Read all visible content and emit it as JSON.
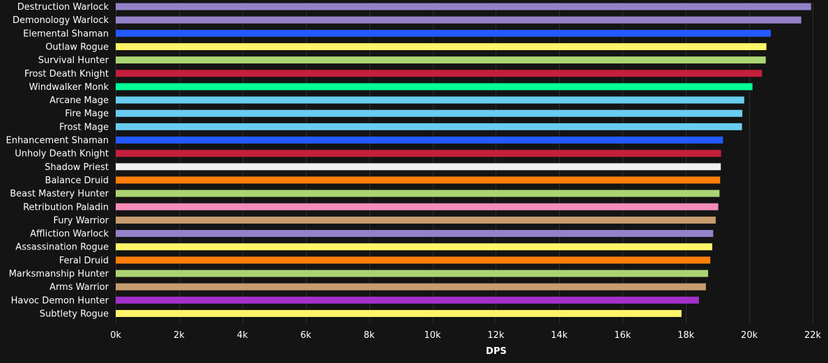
{
  "chart_data": {
    "type": "bar",
    "orientation": "horizontal",
    "xlabel": "DPS",
    "ylabel": "",
    "xlim": [
      0,
      22000
    ],
    "ticks": [
      {
        "value": 0,
        "label": "0k"
      },
      {
        "value": 2000,
        "label": "2k"
      },
      {
        "value": 4000,
        "label": "4k"
      },
      {
        "value": 6000,
        "label": "6k"
      },
      {
        "value": 8000,
        "label": "8k"
      },
      {
        "value": 10000,
        "label": "10k"
      },
      {
        "value": 12000,
        "label": "12k"
      },
      {
        "value": 14000,
        "label": "14k"
      },
      {
        "value": 16000,
        "label": "16k"
      },
      {
        "value": 18000,
        "label": "18k"
      },
      {
        "value": 20000,
        "label": "20k"
      },
      {
        "value": 22000,
        "label": "22k"
      }
    ],
    "grid": true,
    "legend": "none",
    "colors": {
      "background": "#141414",
      "grid": "#2e2e2e",
      "text": "#ffffff"
    },
    "categories": [
      "Destruction Warlock",
      "Demonology Warlock",
      "Elemental Shaman",
      "Outlaw Rogue",
      "Survival Hunter",
      "Frost Death Knight",
      "Windwalker Monk",
      "Arcane Mage",
      "Fire Mage",
      "Frost Mage",
      "Enhancement Shaman",
      "Unholy Death Knight",
      "Shadow Priest",
      "Balance Druid",
      "Beast Mastery Hunter",
      "Retribution Paladin",
      "Fury Warrior",
      "Affliction Warlock",
      "Assassination Rogue",
      "Feral Druid",
      "Marksmanship Hunter",
      "Arms Warrior",
      "Havoc Demon Hunter",
      "Subtlety Rogue"
    ],
    "values": [
      21950,
      21640,
      20680,
      20540,
      20520,
      20400,
      20100,
      19840,
      19780,
      19770,
      19170,
      19110,
      19100,
      19080,
      19060,
      19020,
      18940,
      18860,
      18830,
      18770,
      18700,
      18630,
      18410,
      17860
    ],
    "bar_colors": [
      "#9482C9",
      "#9482C9",
      "#2459FF",
      "#FFF569",
      "#ABD473",
      "#C41F3B",
      "#00FF96",
      "#69CCF0",
      "#69CCF0",
      "#69CCF0",
      "#2459FF",
      "#C41F3B",
      "#F0F0F0",
      "#FF7D0A",
      "#ABD473",
      "#F58CBA",
      "#C79C6E",
      "#9482C9",
      "#FFF569",
      "#FF7D0A",
      "#ABD473",
      "#C79C6E",
      "#A330C9",
      "#FFF569"
    ]
  }
}
